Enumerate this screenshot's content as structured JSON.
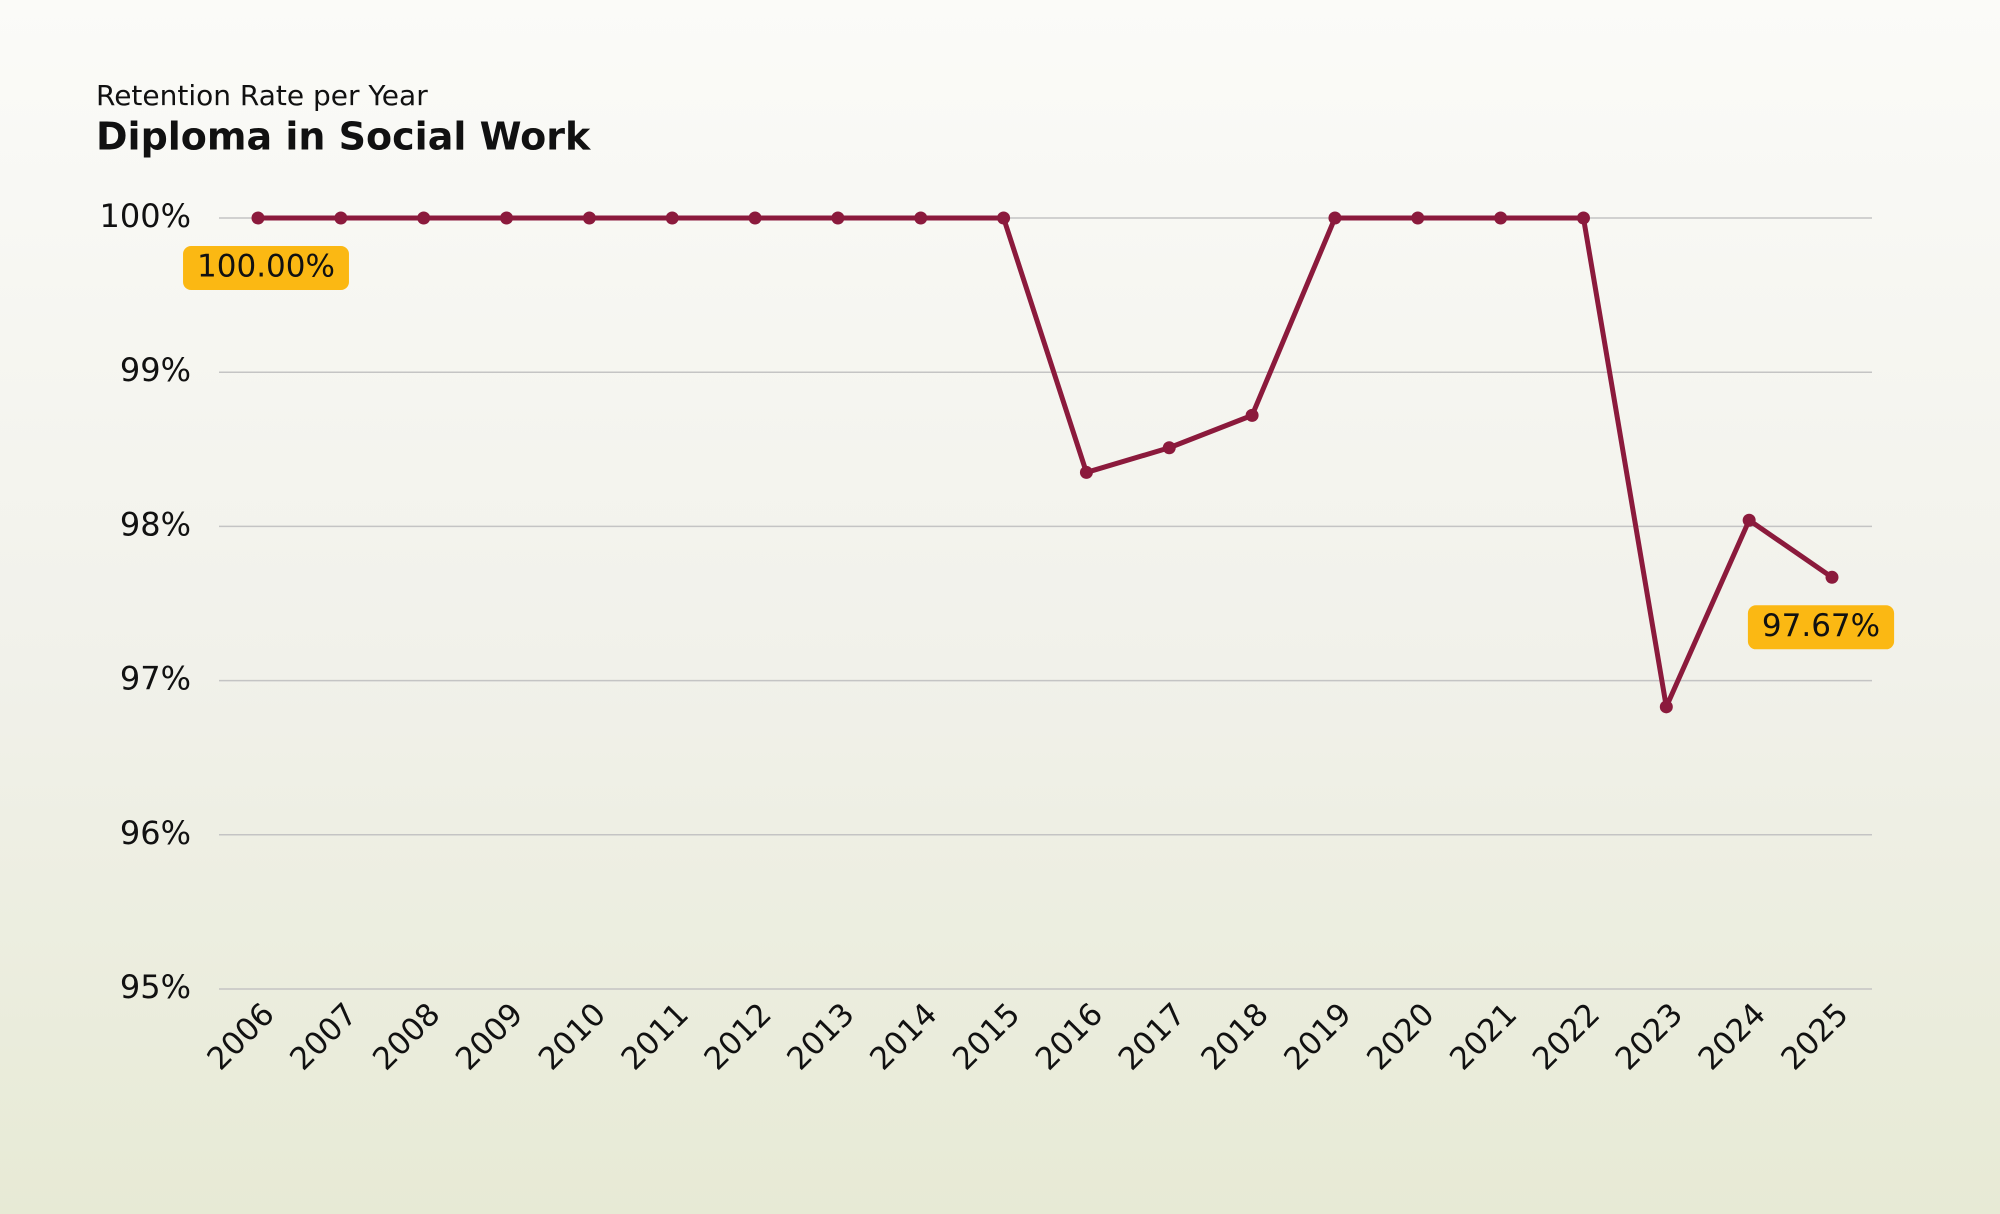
{
  "chart_data": {
    "type": "line",
    "subtitle": "Retention Rate per Year",
    "title": "Diploma in Social Work",
    "categories": [
      "2006",
      "2007",
      "2008",
      "2009",
      "2010",
      "2011",
      "2012",
      "2013",
      "2014",
      "2015",
      "2016",
      "2017",
      "2018",
      "2019",
      "2020",
      "2021",
      "2022",
      "2023",
      "2024",
      "2025"
    ],
    "series": [
      {
        "name": "Retention Rate",
        "color": "#8b1a3c",
        "values": [
          100,
          100,
          100,
          100,
          100,
          100,
          100,
          100,
          100,
          100,
          98.35,
          98.51,
          98.72,
          100,
          100,
          100,
          100,
          96.83,
          98.04,
          97.67
        ],
        "value_labels": [
          "100.00%",
          null,
          null,
          null,
          null,
          null,
          null,
          null,
          null,
          null,
          null,
          null,
          null,
          null,
          null,
          null,
          null,
          null,
          null,
          "97.67%"
        ]
      }
    ],
    "ylim": [
      95,
      100
    ],
    "yticks": [
      {
        "value": 95,
        "label": "95%"
      },
      {
        "value": 96,
        "label": "96%"
      },
      {
        "value": 97,
        "label": "97%"
      },
      {
        "value": 98,
        "label": "98%"
      },
      {
        "value": 99,
        "label": "99%"
      },
      {
        "value": 100,
        "label": "100%"
      }
    ],
    "grid": true,
    "label_color": "#fbb813"
  }
}
